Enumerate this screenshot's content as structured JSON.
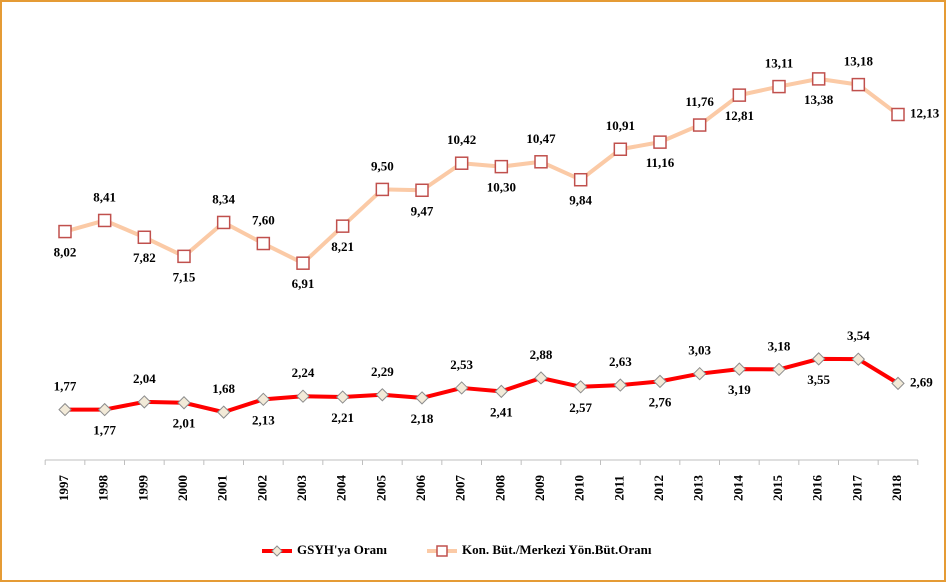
{
  "chart_data": {
    "type": "line",
    "categories": [
      "1997",
      "1998",
      "1999",
      "2000",
      "2001",
      "2002",
      "2003",
      "2004",
      "2005",
      "2006",
      "2007",
      "2008",
      "2009",
      "2010",
      "2011",
      "2012",
      "2013",
      "2014",
      "2015",
      "2016",
      "2017",
      "2018"
    ],
    "ylim": [
      0,
      14.5
    ],
    "series": [
      {
        "name": "GSYH'ya Oranı",
        "color": "#ff0000",
        "marker": "diamond",
        "marker_fill": "#f2ead8",
        "marker_stroke": "#8c8c8c",
        "values": [
          1.77,
          1.77,
          2.04,
          2.01,
          1.68,
          2.13,
          2.24,
          2.21,
          2.29,
          2.18,
          2.53,
          2.41,
          2.88,
          2.57,
          2.63,
          2.76,
          3.03,
          3.19,
          3.18,
          3.55,
          3.54,
          2.69
        ],
        "value_labels": [
          "1,77",
          "1,77",
          "2,04",
          "2,01",
          "1,68",
          "2,13",
          "2,24",
          "2,21",
          "2,29",
          "2,18",
          "2,53",
          "2,41",
          "2,88",
          "2,57",
          "2,63",
          "2,76",
          "3,03",
          "3,19",
          "3,18",
          "3,55",
          "3,54",
          "2,69"
        ]
      },
      {
        "name": "Kon. Büt./Merkezi Yön.Büt.Oranı",
        "color": "#fbcaa6",
        "marker": "square",
        "marker_fill": "#ffffff",
        "marker_stroke": "#c0504d",
        "values": [
          8.02,
          8.41,
          7.82,
          7.15,
          8.34,
          7.6,
          6.91,
          8.21,
          9.5,
          9.47,
          10.42,
          10.3,
          10.47,
          9.84,
          10.91,
          11.16,
          11.76,
          12.81,
          13.11,
          13.38,
          13.18,
          12.13
        ],
        "value_labels": [
          "8,02",
          "8,41",
          "7,82",
          "7,15",
          "8,34",
          "7,60",
          "6,91",
          "8,21",
          "9,50",
          "9,47",
          "10,42",
          "10,30",
          "10,47",
          "9,84",
          "10,91",
          "11,16",
          "11,76",
          "12,81",
          "13,11",
          "13,38",
          "13,18",
          "12,13"
        ]
      }
    ]
  }
}
